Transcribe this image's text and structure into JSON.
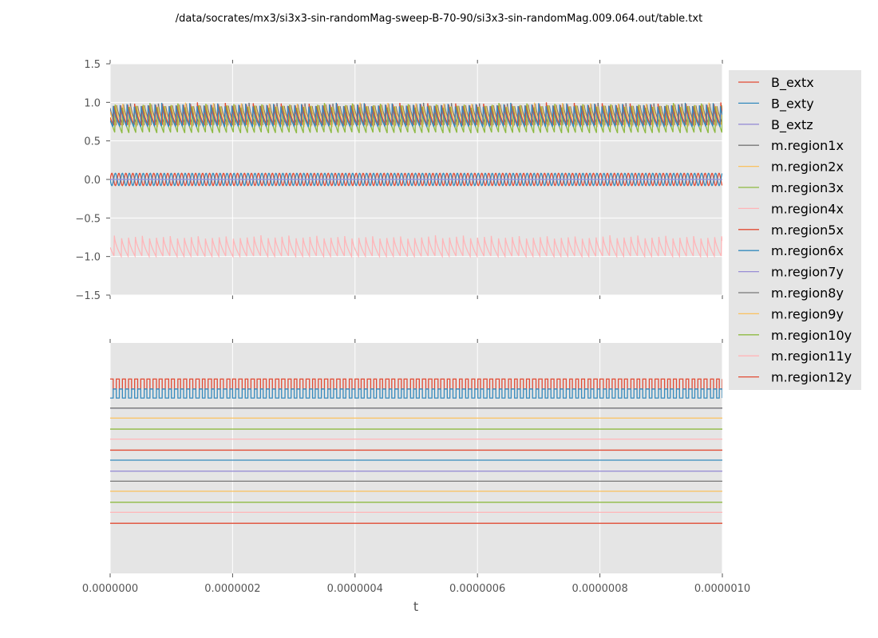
{
  "title": "/data/socrates/mx3/si3x3-sin-randomMag-sweep-B-70-90/si3x3-sin-randomMag.009.064.out/table.txt",
  "colors": {
    "background": "#e5e5e5",
    "grid": "#ffffff",
    "tick_text": "#555555"
  },
  "chart_data": [
    {
      "type": "line",
      "panel": "top",
      "xlabel": "",
      "ylabel": "",
      "xlim": [
        0,
        1e-06
      ],
      "ylim": [
        -1.5,
        1.5
      ],
      "yticks": [
        "1.5",
        "1.0",
        "0.5",
        "0.0",
        "−0.5",
        "−1.0",
        "−1.5"
      ],
      "ytick_values": [
        1.5,
        1.0,
        0.5,
        0.0,
        -0.5,
        -1.0,
        -1.5
      ],
      "xtick_values": [
        0,
        2e-07,
        4e-07,
        6e-07,
        8e-07,
        1e-06
      ],
      "grid": true,
      "series": [
        {
          "name": "B_extx",
          "color": "#E24A33",
          "shape": "sine",
          "offset": 0,
          "amplitude": 0.08,
          "period": 1.14e-08,
          "phase": 0
        },
        {
          "name": "B_exty",
          "color": "#348ABD",
          "shape": "sine",
          "offset": 0,
          "amplitude": 0.08,
          "period": 1.14e-08,
          "phase": 0.5
        },
        {
          "name": "B_extz",
          "color": "#988ED5",
          "shape": "flat",
          "offset": 0
        },
        {
          "name": "m.region1x",
          "color": "#777777",
          "shape": "saw",
          "low": 0.7,
          "high": 1.0,
          "period": 1.14e-08,
          "phase": 0.1
        },
        {
          "name": "m.region2x",
          "color": "#FBC15E",
          "shape": "saw",
          "low": 0.68,
          "high": 1.0,
          "period": 1.14e-08,
          "phase": 0.2
        },
        {
          "name": "m.region3x",
          "color": "#8EBA42",
          "shape": "saw",
          "low": 0.6,
          "high": 1.0,
          "period": 1.14e-08,
          "phase": 0.3
        },
        {
          "name": "m.region4x",
          "color": "#FFB5B8",
          "shape": "saw",
          "low": -1.0,
          "high": -0.72,
          "period": 1.14e-08,
          "phase": 0.4
        },
        {
          "name": "m.region5x",
          "color": "#E24A33",
          "shape": "saw",
          "low": 0.7,
          "high": 1.0,
          "period": 1.14e-08,
          "phase": 0.5
        },
        {
          "name": "m.region6x",
          "color": "#348ABD",
          "shape": "saw",
          "low": 0.68,
          "high": 1.0,
          "period": 1.14e-08,
          "phase": 0.6
        }
      ]
    },
    {
      "type": "line",
      "panel": "bottom",
      "xlabel": "t",
      "xlim": [
        0,
        1e-06
      ],
      "ylim": [
        0,
        23
      ],
      "xticks": [
        "0.0000000",
        "0.0000002",
        "0.0000004",
        "0.0000006",
        "0.0000008",
        "0.0000010"
      ],
      "xtick_values": [
        0,
        2e-07,
        4e-07,
        6e-07,
        8e-07,
        1e-06
      ],
      "grid": true,
      "series": [
        {
          "color": "#E24A33",
          "shape": "square",
          "low": 18.4,
          "high": 19.4,
          "period": 1e-08
        },
        {
          "color": "#348ABD",
          "shape": "square",
          "low": 17.5,
          "high": 18.4,
          "period": 1e-08,
          "phase": 0.5
        },
        {
          "color": "#988ED5",
          "shape": "flat",
          "offset": 16.5
        },
        {
          "color": "#777777",
          "shape": "flat",
          "offset": 16.5
        },
        {
          "color": "#FBC15E",
          "shape": "flat",
          "offset": 15.5
        },
        {
          "color": "#8EBA42",
          "shape": "flat",
          "offset": 14.4
        },
        {
          "color": "#FFB5B8",
          "shape": "flat",
          "offset": 13.4
        },
        {
          "color": "#E24A33",
          "shape": "flat",
          "offset": 12.3
        },
        {
          "color": "#348ABD",
          "shape": "flat",
          "offset": 11.3
        },
        {
          "color": "#988ED5",
          "shape": "flat",
          "offset": 10.2
        },
        {
          "color": "#777777",
          "shape": "flat",
          "offset": 9.2
        },
        {
          "color": "#FBC15E",
          "shape": "flat",
          "offset": 8.2
        },
        {
          "color": "#8EBA42",
          "shape": "flat",
          "offset": 7.1
        },
        {
          "color": "#FFB5B8",
          "shape": "flat",
          "offset": 6.1
        },
        {
          "color": "#E24A33",
          "shape": "flat",
          "offset": 5.0
        }
      ]
    }
  ],
  "legend": {
    "placement": "right",
    "entries": [
      {
        "label": "B_extx",
        "color": "#E24A33"
      },
      {
        "label": "B_exty",
        "color": "#348ABD"
      },
      {
        "label": "B_extz",
        "color": "#988ED5"
      },
      {
        "label": "m.region1x",
        "color": "#777777"
      },
      {
        "label": "m.region2x",
        "color": "#FBC15E"
      },
      {
        "label": "m.region3x",
        "color": "#8EBA42"
      },
      {
        "label": "m.region4x",
        "color": "#FFB5B8"
      },
      {
        "label": "m.region5x",
        "color": "#E24A33"
      },
      {
        "label": "m.region6x",
        "color": "#348ABD"
      },
      {
        "label": "m.region7y",
        "color": "#988ED5"
      },
      {
        "label": "m.region8y",
        "color": "#777777"
      },
      {
        "label": "m.region9y",
        "color": "#FBC15E"
      },
      {
        "label": "m.region10y",
        "color": "#8EBA42"
      },
      {
        "label": "m.region11y",
        "color": "#FFB5B8"
      },
      {
        "label": "m.region12y",
        "color": "#E24A33"
      }
    ]
  }
}
